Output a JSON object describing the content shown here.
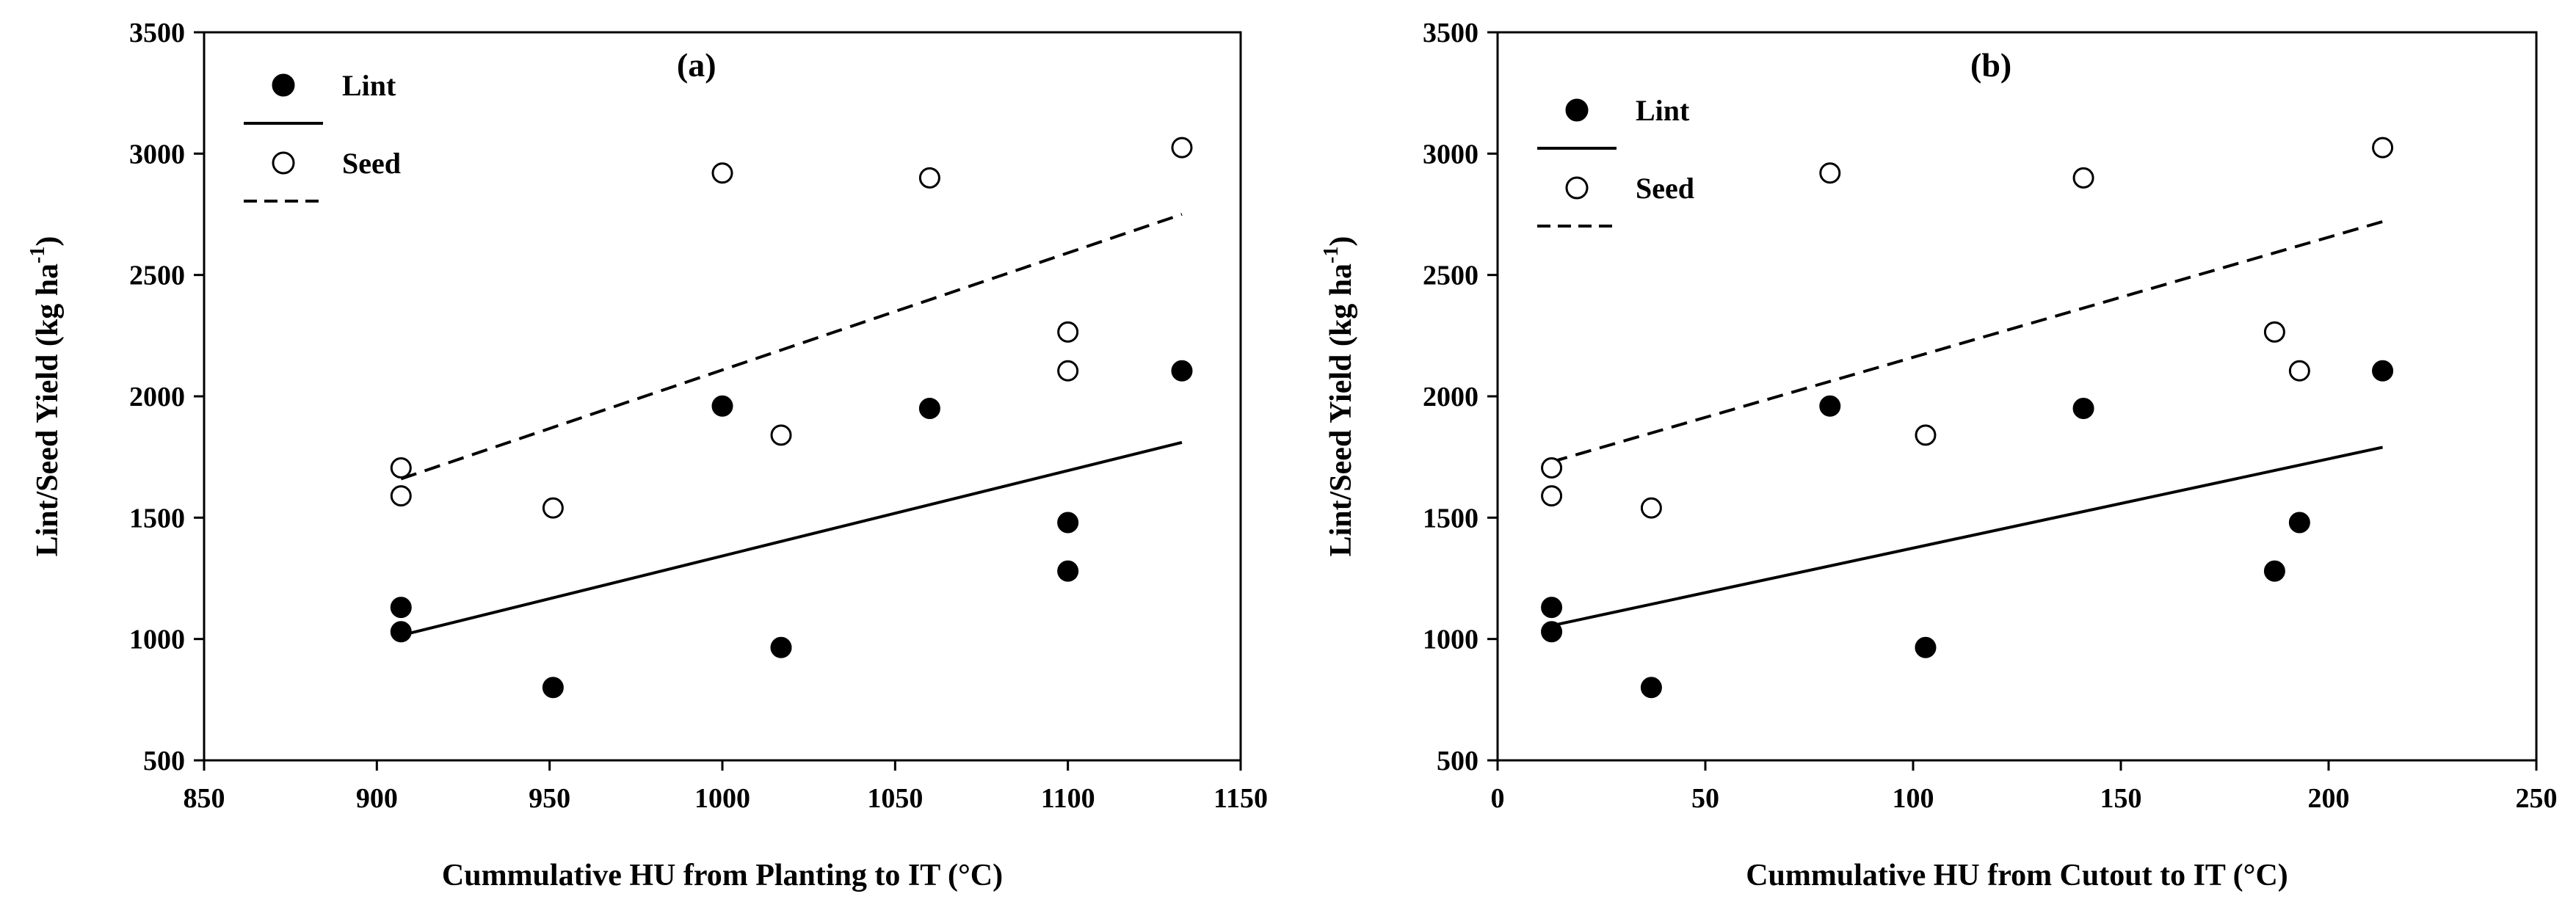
{
  "chart_data": [
    {
      "type": "scatter",
      "panel_label": "(a)",
      "xlabel": "Cummulative HU from Planting to IT (°C)",
      "ylabel": "Lint/Seed Yield (kg ha",
      "ylabel_sup": "-1",
      "ylabel_end": ")",
      "xlim": [
        850,
        1150
      ],
      "ylim": [
        500,
        3500
      ],
      "xticks": [
        850,
        900,
        950,
        1000,
        1050,
        1100,
        1150
      ],
      "yticks": [
        500,
        1000,
        1500,
        2000,
        2500,
        3000,
        3500
      ],
      "legend_position": "top-left",
      "series": [
        {
          "name": "Lint",
          "marker": "filled-circle",
          "points": [
            [
              907,
              1130
            ],
            [
              907,
              1030
            ],
            [
              951,
              800
            ],
            [
              1000,
              1960
            ],
            [
              1017,
              965
            ],
            [
              1060,
              1950
            ],
            [
              1100,
              1480
            ],
            [
              1100,
              1280
            ],
            [
              1133,
              2105
            ]
          ]
        },
        {
          "name": "Seed",
          "marker": "open-circle",
          "points": [
            [
              907,
              1705
            ],
            [
              907,
              1590
            ],
            [
              951,
              1540
            ],
            [
              1000,
              2920
            ],
            [
              1017,
              1840
            ],
            [
              1060,
              2900
            ],
            [
              1100,
              2265
            ],
            [
              1100,
              2105
            ],
            [
              1133,
              3025
            ]
          ]
        }
      ],
      "fits": [
        {
          "series": "Lint",
          "style": "solid",
          "x": [
            907,
            1133
          ],
          "y": [
            1015,
            1810
          ]
        },
        {
          "series": "Seed",
          "style": "dashed",
          "x": [
            907,
            1133
          ],
          "y": [
            1660,
            2750
          ]
        }
      ]
    },
    {
      "type": "scatter",
      "panel_label": "(b)",
      "xlabel": "Cummulative HU from Cutout to IT (°C)",
      "ylabel": "Lint/Seed Yield (kg ha",
      "ylabel_sup": "-1",
      "ylabel_end": ")",
      "xlim": [
        0,
        250
      ],
      "ylim": [
        500,
        3500
      ],
      "xticks": [
        0,
        50,
        100,
        150,
        200,
        250
      ],
      "yticks": [
        500,
        1000,
        1500,
        2000,
        2500,
        3000,
        3500
      ],
      "legend_position": "top-left",
      "series": [
        {
          "name": "Lint",
          "marker": "filled-circle",
          "points": [
            [
              13,
              1130
            ],
            [
              13,
              1030
            ],
            [
              37,
              800
            ],
            [
              80,
              1960
            ],
            [
              103,
              965
            ],
            [
              141,
              1950
            ],
            [
              193,
              1480
            ],
            [
              187,
              1280
            ],
            [
              213,
              2105
            ]
          ]
        },
        {
          "name": "Seed",
          "marker": "open-circle",
          "points": [
            [
              13,
              1705
            ],
            [
              13,
              1590
            ],
            [
              37,
              1540
            ],
            [
              80,
              2920
            ],
            [
              103,
              1840
            ],
            [
              141,
              2900
            ],
            [
              187,
              2265
            ],
            [
              193,
              2105
            ],
            [
              213,
              3025
            ]
          ]
        }
      ],
      "fits": [
        {
          "series": "Lint",
          "style": "solid",
          "x": [
            13,
            213
          ],
          "y": [
            1055,
            1790
          ]
        },
        {
          "series": "Seed",
          "style": "dashed",
          "x": [
            13,
            213
          ],
          "y": [
            1730,
            2720
          ]
        }
      ]
    }
  ]
}
